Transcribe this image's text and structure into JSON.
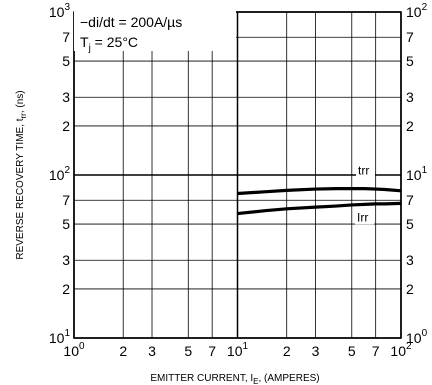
{
  "chart_data": {
    "type": "line",
    "xscale": "log",
    "yscale": "log",
    "xlim": [
      1,
      100
    ],
    "ylim": [
      10,
      1000
    ],
    "grid": true,
    "xlabel": {
      "prefix": "EMITTER CURRENT, I",
      "sub": "E",
      "suffix": ", (AMPERES)"
    },
    "ylabel_left": {
      "prefix": "REVERSE RECOVERY TIME, t",
      "sub": "rr",
      "suffix": ", (ns)"
    },
    "ylabel_right": "",
    "x_ticks": [
      {
        "value": 1,
        "base": "10",
        "exp": "0"
      },
      {
        "value": 2,
        "label": "2"
      },
      {
        "value": 3,
        "label": "3"
      },
      {
        "value": 5,
        "label": "5"
      },
      {
        "value": 7,
        "label": "7"
      },
      {
        "value": 10,
        "base": "10",
        "exp": "1"
      },
      {
        "value": 20,
        "label": "2"
      },
      {
        "value": 30,
        "label": "3"
      },
      {
        "value": 50,
        "label": "5"
      },
      {
        "value": 70,
        "label": "7"
      },
      {
        "value": 100,
        "base": "10",
        "exp": "2"
      }
    ],
    "y_ticks": [
      {
        "value": 10,
        "base": "10",
        "exp": "1",
        "right_exp": "0"
      },
      {
        "value": 20,
        "label": "2"
      },
      {
        "value": 30,
        "label": "3"
      },
      {
        "value": 50,
        "label": "5"
      },
      {
        "value": 70,
        "label": "7"
      },
      {
        "value": 100,
        "base": "10",
        "exp": "2",
        "right_exp": "1"
      },
      {
        "value": 200,
        "label": "2"
      },
      {
        "value": 300,
        "label": "3"
      },
      {
        "value": 500,
        "label": "5"
      },
      {
        "value": 700,
        "label": "7"
      },
      {
        "value": 1000,
        "base": "10",
        "exp": "3",
        "right_exp": "2"
      }
    ],
    "annotations": [
      {
        "text": "−di/dt = 200A/µs"
      },
      {
        "prefix": "T",
        "sub": "j",
        "suffix": " = 25°C"
      }
    ],
    "series": [
      {
        "name": "trr",
        "x": [
          10,
          15,
          20,
          30,
          40,
          50,
          60,
          70,
          80,
          100
        ],
        "y": [
          77,
          79,
          80.5,
          82,
          82.5,
          82.5,
          82.5,
          82,
          81.5,
          80
        ]
      },
      {
        "name": "Irr",
        "x": [
          10,
          15,
          20,
          30,
          40,
          50,
          60,
          70,
          80,
          100
        ],
        "y": [
          58,
          60.5,
          62,
          63.5,
          64.5,
          65.5,
          66,
          66.5,
          66.5,
          67
        ]
      }
    ]
  }
}
